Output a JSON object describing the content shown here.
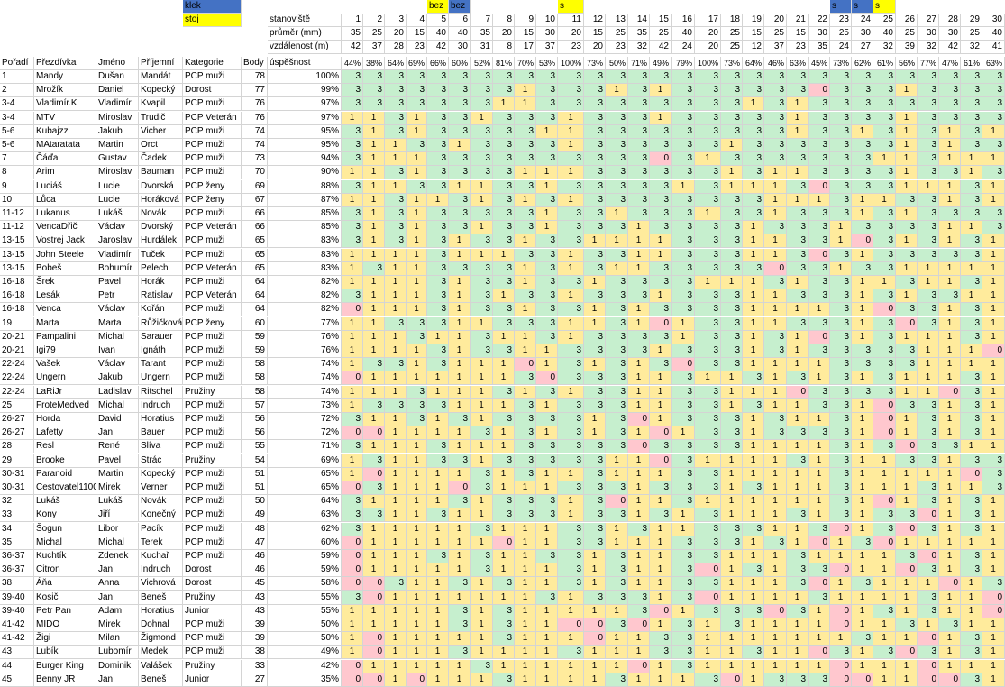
{
  "legend": {
    "klek": "klek",
    "stoj": "stoj"
  },
  "headers": {
    "poradi": "Pořadí",
    "prezdivka": "Přezdívka",
    "jmeno": "Jméno",
    "prijmeni": "Příjemní",
    "kategorie": "Kategorie",
    "body": "Body",
    "uspesnost": "úspěšnost",
    "stanoviste": "stanoviště",
    "prumer": "průměr (mm)",
    "vzdalenost": "vzdálenost (m)"
  },
  "colors": {
    "three": "#c6efce",
    "one": "#ffeb9c",
    "zero": "#ffc7ce",
    "klek": "#4472c4",
    "stoj": "#ffff00"
  },
  "stations": [
    {
      "n": "1",
      "d": "35",
      "v": "42",
      "p": "44%",
      "flag": "",
      "ft": ""
    },
    {
      "n": "2",
      "d": "25",
      "v": "37",
      "p": "38%",
      "flag": "",
      "ft": ""
    },
    {
      "n": "3",
      "d": "20",
      "v": "28",
      "p": "64%",
      "flag": "",
      "ft": ""
    },
    {
      "n": "4",
      "d": "15",
      "v": "23",
      "p": "69%",
      "flag": "",
      "ft": ""
    },
    {
      "n": "5",
      "d": "40",
      "v": "42",
      "p": "66%",
      "flag": "yellow",
      "ft": "bez"
    },
    {
      "n": "6",
      "d": "40",
      "v": "30",
      "p": "60%",
      "flag": "blue",
      "ft": "bez"
    },
    {
      "n": "7",
      "d": "35",
      "v": "31",
      "p": "52%",
      "flag": "",
      "ft": ""
    },
    {
      "n": "8",
      "d": "20",
      "v": "8",
      "p": "81%",
      "flag": "",
      "ft": ""
    },
    {
      "n": "9",
      "d": "15",
      "v": "17",
      "p": "70%",
      "flag": "",
      "ft": ""
    },
    {
      "n": "10",
      "d": "30",
      "v": "37",
      "p": "53%",
      "flag": "",
      "ft": ""
    },
    {
      "n": "11",
      "d": "20",
      "v": "23",
      "p": "100%",
      "flag": "yellow",
      "ft": "s"
    },
    {
      "n": "12",
      "d": "15",
      "v": "20",
      "p": "73%",
      "flag": "",
      "ft": ""
    },
    {
      "n": "13",
      "d": "25",
      "v": "23",
      "p": "50%",
      "flag": "",
      "ft": ""
    },
    {
      "n": "14",
      "d": "35",
      "v": "32",
      "p": "71%",
      "flag": "",
      "ft": ""
    },
    {
      "n": "15",
      "d": "25",
      "v": "42",
      "p": "49%",
      "flag": "",
      "ft": ""
    },
    {
      "n": "16",
      "d": "40",
      "v": "24",
      "p": "79%",
      "flag": "",
      "ft": ""
    },
    {
      "n": "17",
      "d": "20",
      "v": "20",
      "p": "100%",
      "flag": "",
      "ft": ""
    },
    {
      "n": "18",
      "d": "25",
      "v": "25",
      "p": "73%",
      "flag": "",
      "ft": ""
    },
    {
      "n": "19",
      "d": "15",
      "v": "12",
      "p": "64%",
      "flag": "",
      "ft": ""
    },
    {
      "n": "20",
      "d": "25",
      "v": "37",
      "p": "46%",
      "flag": "",
      "ft": ""
    },
    {
      "n": "21",
      "d": "15",
      "v": "23",
      "p": "63%",
      "flag": "",
      "ft": ""
    },
    {
      "n": "22",
      "d": "30",
      "v": "35",
      "p": "45%",
      "flag": "",
      "ft": ""
    },
    {
      "n": "23",
      "d": "25",
      "v": "24",
      "p": "73%",
      "flag": "blue",
      "ft": "s"
    },
    {
      "n": "24",
      "d": "30",
      "v": "27",
      "p": "62%",
      "flag": "blue",
      "ft": "s"
    },
    {
      "n": "25",
      "d": "40",
      "v": "32",
      "p": "61%",
      "flag": "yellow",
      "ft": "s"
    },
    {
      "n": "26",
      "d": "25",
      "v": "39",
      "p": "56%",
      "flag": "",
      "ft": ""
    },
    {
      "n": "27",
      "d": "30",
      "v": "32",
      "p": "77%",
      "flag": "",
      "ft": ""
    },
    {
      "n": "28",
      "d": "30",
      "v": "42",
      "p": "47%",
      "flag": "",
      "ft": ""
    },
    {
      "n": "29",
      "d": "25",
      "v": "32",
      "p": "61%",
      "flag": "",
      "ft": ""
    },
    {
      "n": "30",
      "d": "40",
      "v": "41",
      "p": "63%",
      "flag": "",
      "ft": ""
    }
  ],
  "rows": [
    {
      "rank": "1",
      "nick": "Mandy",
      "first": "Dušan",
      "last": "Mandát",
      "cat": "PCP muži",
      "pts": "78",
      "pct": "100%",
      "s": "333333333333333333333333333333"
    },
    {
      "rank": "2",
      "nick": "Mrožík",
      "first": "Daniel",
      "last": "Kopecký",
      "cat": "Dorost",
      "pts": "77",
      "pct": "99%",
      "s": "333333331333131333333033313333"
    },
    {
      "rank": "3-4",
      "nick": "Vladimír.K",
      "first": "Vladimír",
      "last": "Kvapil",
      "cat": "PCP muži",
      "pts": "76",
      "pct": "97%",
      "s": "333333311333333333131333333333"
    },
    {
      "rank": "3-4",
      "nick": "MTV",
      "first": "Miroslav",
      "last": "Trudič",
      "cat": "PCP Veterán",
      "pts": "76",
      "pct": "97%",
      "s": "113133133313331333331333313333"
    },
    {
      "rank": "5-6",
      "nick": "Kubajzz",
      "first": "Jakub",
      "last": "Vicher",
      "cat": "PCP muži",
      "pts": "74",
      "pct": "95%",
      "s": "313133333113333333331331313131"
    },
    {
      "rank": "5-6",
      "nick": "MAtaratata",
      "first": "Martin",
      "last": "Orct",
      "cat": "PCP muži",
      "pts": "74",
      "pct": "95%",
      "s": "311331333313333331333333313133"
    },
    {
      "rank": "7",
      "nick": "Čáďa",
      "first": "Gustav",
      "last": "Čadek",
      "cat": "PCP muži",
      "pts": "73",
      "pct": "94%",
      "s": "311133333333330313333333113111"
    },
    {
      "rank": "8",
      "nick": "Arim",
      "first": "Miroslav",
      "last": "Bauman",
      "cat": "PCP muži",
      "pts": "70",
      "pct": "90%",
      "s": "113133331113333331311333313313"
    },
    {
      "rank": "9",
      "nick": "Luciáš",
      "first": "Lucie",
      "last": "Dvorská",
      "cat": "PCP ženy",
      "pts": "69",
      "pct": "88%",
      "s": "311331133133333131113033311131"
    },
    {
      "rank": "10",
      "nick": "Lůca",
      "first": "Lucie",
      "last": "Horáková",
      "cat": "PCP ženy",
      "pts": "67",
      "pct": "87%",
      "s": "113113131313333333311131133131"
    },
    {
      "rank": "11-12",
      "nick": "Lukanus",
      "first": "Lukáš",
      "last": "Novák",
      "cat": "PCP muži",
      "pts": "66",
      "pct": "85%",
      "s": "313133333133133313313331313333"
    },
    {
      "rank": "11-12",
      "nick": "VencaDřič",
      "first": "Václav",
      "last": "Dvorský",
      "cat": "PCP Veterán",
      "pts": "66",
      "pct": "85%",
      "s": "313133133133313333133313333113"
    },
    {
      "rank": "13-15",
      "nick": "Vostrej Jack",
      "first": "Jaroslav",
      "last": "Hurdálek",
      "cat": "PCP muži",
      "pts": "65",
      "pct": "83%",
      "s": "313131331331111333113310313131"
    },
    {
      "rank": "13-15",
      "nick": "John Steele",
      "first": "Vladimír",
      "last": "Tuček",
      "cat": "PCP muži",
      "pts": "65",
      "pct": "83%",
      "s": "111131113313311333113031333331"
    },
    {
      "rank": "13-15",
      "nick": "Bobeš",
      "first": "Bohumír",
      "last": "Pelech",
      "cat": "PCP Veterán",
      "pts": "65",
      "pct": "83%",
      "s": "131133331313113333303313311111"
    },
    {
      "rank": "16-18",
      "nick": "Šrek",
      "first": "Pavel",
      "last": "Horák",
      "cat": "PCP muži",
      "pts": "64",
      "pct": "82%",
      "s": "111131331331333311131331131131"
    },
    {
      "rank": "16-18",
      "nick": "Lesák",
      "first": "Petr",
      "last": "Ratislav",
      "cat": "PCP Veterán",
      "pts": "64",
      "pct": "82%",
      "s": "311131313313331333113331313311"
    },
    {
      "rank": "16-18",
      "nick": "Venca",
      "first": "Václav",
      "last": "Kořán",
      "cat": "PCP muži",
      "pts": "64",
      "pct": "82%",
      "s": "011131331331313333111131033131"
    },
    {
      "rank": "19",
      "nick": "Marta",
      "first": "Marta",
      "last": "Růžičková",
      "cat": "PCP ženy",
      "pts": "60",
      "pct": "77%",
      "s": "113331133311310133113331303131"
    },
    {
      "rank": "20-21",
      "nick": "Pampalini",
      "first": "Michal",
      "last": "Sarauer",
      "cat": "PCP muži",
      "pts": "59",
      "pct": "76%",
      "s": "111311311313333133131031311131"
    },
    {
      "rank": "20-21",
      "nick": "Igi79",
      "first": "Ivan",
      "last": "Ignáth",
      "cat": "PCP muži",
      "pts": "59",
      "pct": "76%",
      "s": "111131331133331333131333331110"
    },
    {
      "rank": "22-24",
      "nick": "Vašek",
      "first": "Václav",
      "last": "Tarant",
      "cat": "PCP muži",
      "pts": "58",
      "pct": "74%",
      "s": "133131110131313033111133331111"
    },
    {
      "rank": "22-24",
      "nick": "Ungern",
      "first": "Jakub",
      "last": "Ungern",
      "cat": "PCP muži",
      "pts": "58",
      "pct": "74%",
      "s": "011111113033311311313131311131"
    },
    {
      "rank": "22-24",
      "nick": "LaRiJr",
      "first": "Ladislav",
      "last": "Ritschel",
      "cat": "Pružiny",
      "pts": "58",
      "pct": "74%",
      "s": "111311131313311331110333311031"
    },
    {
      "rank": "25",
      "nick": "FroteMedved",
      "first": "Michal",
      "last": "Indruch",
      "cat": "PCP muži",
      "pts": "57",
      "pct": "73%",
      "s": "133331113133311331311331033131"
    },
    {
      "rank": "26-27",
      "nick": "Horda",
      "first": "David",
      "last": "Horatius",
      "cat": "PCP muži",
      "pts": "56",
      "pct": "72%",
      "s": "311313133331301333131131013131"
    },
    {
      "rank": "26-27",
      "nick": "Lafetty",
      "first": "Jan",
      "last": "Bauer",
      "cat": "PCP muži",
      "pts": "56",
      "pct": "72%",
      "s": "001111313131310133133331013131"
    },
    {
      "rank": "28",
      "nick": "Resl",
      "first": "René",
      "last": "Slíva",
      "cat": "PCP muži",
      "pts": "55",
      "pct": "71%",
      "s": "311131113333303333111131303311"
    },
    {
      "rank": "29",
      "nick": "Brooke",
      "first": "Pavel",
      "last": "Strác",
      "cat": "Pružiny",
      "pts": "54",
      "pct": "69%",
      "s": "131133133333110311113131133133"
    },
    {
      "rank": "30-31",
      "nick": "Paranoid",
      "first": "Martin",
      "last": "Kopecký",
      "cat": "PCP muži",
      "pts": "51",
      "pct": "65%",
      "s": "101111313113111331111131111103"
    },
    {
      "rank": "30-31",
      "nick": "Cestovatel1100",
      "first": "Mirek",
      "last": "Verner",
      "cat": "PCP muži",
      "pts": "51",
      "pct": "65%",
      "s": "031110311133313331311131113113"
    },
    {
      "rank": "32",
      "nick": "Lukáš",
      "first": "Lukáš",
      "last": "Novák",
      "cat": "PCP muži",
      "pts": "50",
      "pct": "64%",
      "s": "311113133313011311111131013131"
    },
    {
      "rank": "33",
      "nick": "Kony",
      "first": "Jiří",
      "last": "Konečný",
      "cat": "PCP muži",
      "pts": "49",
      "pct": "63%",
      "s": "331131133313313131113131330131"
    },
    {
      "rank": "34",
      "nick": "Šogun",
      "first": "Libor",
      "last": "Pacík",
      "cat": "PCP muži",
      "pts": "48",
      "pct": "62%",
      "s": "311111311133131133311301303131"
    },
    {
      "rank": "35",
      "nick": "Michal",
      "first": "Michal",
      "last": "Terek",
      "cat": "PCP muži",
      "pts": "47",
      "pct": "60%",
      "s": "011111101133111333131013011111"
    },
    {
      "rank": "36-37",
      "nick": "Kuchtík",
      "first": "Zdenek",
      "last": "Kuchař",
      "cat": "PCP muži",
      "pts": "46",
      "pct": "59%",
      "s": "011131311331311331113111130131"
    },
    {
      "rank": "36-37",
      "nick": "Citron",
      "first": "Jan",
      "last": "Indruch",
      "cat": "Dorost",
      "pts": "46",
      "pct": "59%",
      "s": "011111311131311301313301103131"
    },
    {
      "rank": "38",
      "nick": "Áňa",
      "first": "Anna",
      "last": "Vichrová",
      "cat": "Dorost",
      "pts": "45",
      "pct": "58%",
      "s": "003113131131311331113013111013"
    },
    {
      "rank": "39-40",
      "nick": "Kosič",
      "first": "Jan",
      "last": "Beneš",
      "cat": "Pružiny",
      "pts": "43",
      "pct": "55%",
      "s": "301111111313331301111311113110"
    },
    {
      "rank": "39-40",
      "nick": "Petr Pan",
      "first": "Adam",
      "last": "Horatius",
      "cat": "Junior",
      "pts": "43",
      "pct": "55%",
      "s": "111113131111130133303101313110"
    },
    {
      "rank": "41-42",
      "nick": "MIDO",
      "first": "Mirek",
      "last": "Dohnal",
      "cat": "PCP muži",
      "pts": "39",
      "pct": "50%",
      "s": "111113131100301313111101131311"
    },
    {
      "rank": "41-42",
      "nick": "Žigi",
      "first": "Milan",
      "last": "Žigmond",
      "cat": "PCP muži",
      "pts": "39",
      "pct": "50%",
      "s": "101111131110113311111113110131"
    },
    {
      "rank": "43",
      "nick": "Lubík",
      "first": "Lubomír",
      "last": "Medek",
      "cat": "PCP muži",
      "pts": "38",
      "pct": "49%",
      "s": "101113111131113311311031303131"
    },
    {
      "rank": "44",
      "nick": "Burger King",
      "first": "Dominik",
      "last": "Valášek",
      "cat": "Pružiny",
      "pts": "33",
      "pct": "42%",
      "s": "011111311111101311111101110111"
    },
    {
      "rank": "45",
      "nick": "Benny JR",
      "first": "Jan",
      "last": "Beneš",
      "cat": "Junior",
      "pts": "27",
      "pct": "35%",
      "s": "001011131111311130133300110031"
    }
  ]
}
